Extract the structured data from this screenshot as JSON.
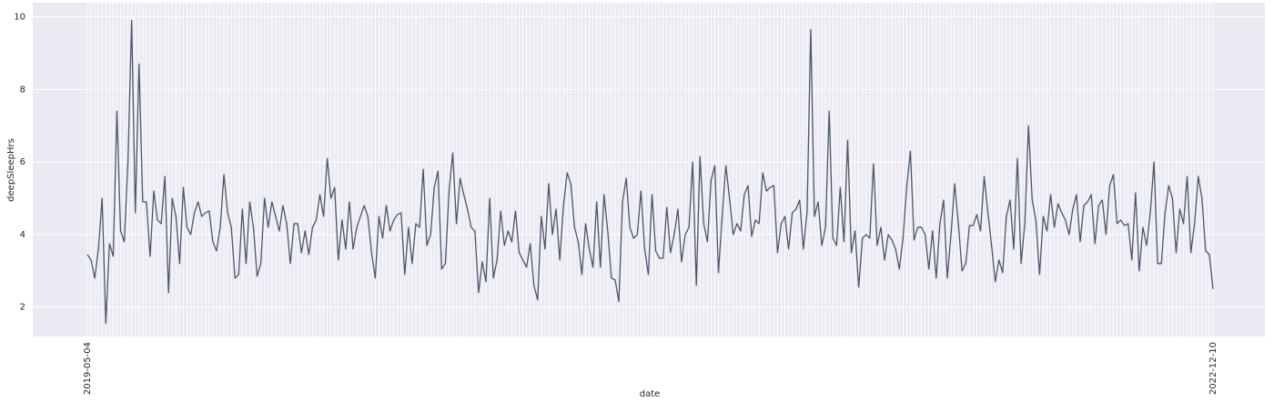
{
  "chart_data": {
    "type": "line",
    "xlabel": "date",
    "ylabel": "deepSleepHrs",
    "color": "#4c566a",
    "grid": true,
    "ylim": [
      1.19,
      10.39
    ],
    "yticks": [
      2,
      4,
      6,
      8,
      10
    ],
    "categories": [
      "2019-05-04",
      null,
      null,
      null,
      null,
      null,
      null,
      null,
      null,
      null,
      null,
      null,
      null,
      null,
      null,
      null,
      null,
      null,
      null,
      null,
      null,
      null,
      null,
      null,
      null,
      null,
      null,
      null,
      null,
      null,
      null,
      null,
      null,
      null,
      null,
      null,
      null,
      null,
      null,
      null,
      null,
      null,
      null,
      null,
      null,
      null,
      null,
      null,
      null,
      null,
      null,
      null,
      null,
      null,
      null,
      null,
      null,
      null,
      null,
      null,
      null,
      null,
      null,
      null,
      null,
      null,
      null,
      null,
      null,
      null,
      null,
      null,
      null,
      null,
      null,
      null,
      null,
      null,
      null,
      null,
      null,
      null,
      null,
      null,
      null,
      null,
      null,
      null,
      null,
      null,
      null,
      null,
      null,
      null,
      null,
      null,
      null,
      null,
      null,
      null,
      null,
      null,
      null,
      null,
      null,
      null,
      null,
      null,
      null,
      null,
      null,
      null,
      null,
      null,
      null,
      null,
      null,
      null,
      null,
      null,
      null,
      null,
      null,
      null,
      null,
      null,
      null,
      null,
      null,
      null,
      null,
      null,
      null,
      null,
      null,
      null,
      null,
      null,
      null,
      null,
      null,
      null,
      null,
      null,
      null,
      null,
      null,
      null,
      null,
      null,
      null,
      null,
      null,
      null,
      null,
      null,
      null,
      null,
      null,
      null,
      null,
      null,
      null,
      null,
      null,
      null,
      null,
      null,
      null,
      null,
      null,
      null,
      null,
      null,
      null,
      null,
      null,
      null,
      null,
      null,
      null,
      null,
      null,
      null,
      null,
      null,
      null,
      null,
      null,
      null,
      null,
      null,
      null,
      null,
      null,
      null,
      null,
      null,
      null,
      null,
      null,
      null,
      null,
      null,
      null,
      null,
      null,
      null,
      null,
      null,
      null,
      null,
      null,
      null,
      null,
      null,
      null,
      null,
      null,
      null,
      null,
      null,
      null,
      null,
      null,
      null,
      null,
      null,
      null,
      null,
      null,
      null,
      null,
      null,
      null,
      null,
      null,
      null,
      null,
      null,
      null,
      null,
      null,
      null,
      null,
      null,
      null,
      null,
      null,
      null,
      null,
      null,
      null,
      null,
      null,
      null,
      null,
      null,
      null,
      null,
      null,
      null,
      null,
      null,
      null,
      null,
      null,
      null,
      null,
      null,
      null,
      null,
      null,
      null,
      null,
      null,
      null,
      null,
      null,
      null,
      null,
      null,
      null,
      null,
      null,
      null,
      null,
      null,
      null,
      null,
      null,
      null,
      null,
      null,
      null,
      null,
      null,
      null,
      null,
      null,
      null,
      null,
      null,
      null,
      null,
      "2022-12-10"
    ],
    "values": [
      3.45,
      3.3,
      2.8,
      3.6,
      5.0,
      1.55,
      3.75,
      3.4,
      7.4,
      4.1,
      3.8,
      6.0,
      9.9,
      4.6,
      8.7,
      4.9,
      4.9,
      3.4,
      5.2,
      4.4,
      4.3,
      5.6,
      2.4,
      5.0,
      4.5,
      3.2,
      5.3,
      4.2,
      4.0,
      4.6,
      4.9,
      4.5,
      4.6,
      4.65,
      3.8,
      3.55,
      4.2,
      5.65,
      4.6,
      4.2,
      2.8,
      2.9,
      4.7,
      3.2,
      4.9,
      4.2,
      2.85,
      3.2,
      5.0,
      4.2,
      4.9,
      4.5,
      4.1,
      4.8,
      4.3,
      3.2,
      4.3,
      4.3,
      3.5,
      4.1,
      3.45,
      4.2,
      4.4,
      5.1,
      4.5,
      6.1,
      5.0,
      5.3,
      3.3,
      4.4,
      3.6,
      4.9,
      3.6,
      4.2,
      4.5,
      4.8,
      4.5,
      3.5,
      2.8,
      4.5,
      3.9,
      4.8,
      4.1,
      4.4,
      4.55,
      4.6,
      2.9,
      4.2,
      3.2,
      4.3,
      4.2,
      5.8,
      3.7,
      4.0,
      5.3,
      5.75,
      3.05,
      3.2,
      5.2,
      6.25,
      4.3,
      5.55,
      5.1,
      4.7,
      4.2,
      4.1,
      2.4,
      3.25,
      2.7,
      5.0,
      2.8,
      3.3,
      4.65,
      3.7,
      4.1,
      3.8,
      4.65,
      3.5,
      3.3,
      3.1,
      3.75,
      2.6,
      2.2,
      4.5,
      3.6,
      5.4,
      4.0,
      4.7,
      3.3,
      4.8,
      5.7,
      5.4,
      4.2,
      3.8,
      2.9,
      4.3,
      3.6,
      3.1,
      4.9,
      3.1,
      5.1,
      4.1,
      2.8,
      2.75,
      2.15,
      4.9,
      5.55,
      4.2,
      3.9,
      4.0,
      5.2,
      3.6,
      2.9,
      5.1,
      3.55,
      3.35,
      3.35,
      4.75,
      3.5,
      4.0,
      4.7,
      3.25,
      4.0,
      4.2,
      6.0,
      2.6,
      6.15,
      4.3,
      3.8,
      5.5,
      5.9,
      2.95,
      4.5,
      5.9,
      5.0,
      4.0,
      4.3,
      4.1,
      5.1,
      5.35,
      3.95,
      4.4,
      4.3,
      5.7,
      5.2,
      5.3,
      5.35,
      3.5,
      4.3,
      4.5,
      3.6,
      4.6,
      4.7,
      4.95,
      3.6,
      4.6,
      9.65,
      4.5,
      4.9,
      3.7,
      4.2,
      7.4,
      3.9,
      3.7,
      5.3,
      3.8,
      6.6,
      3.5,
      4.1,
      2.55,
      3.9,
      4.0,
      3.9,
      5.95,
      3.7,
      4.2,
      3.3,
      4.0,
      3.85,
      3.6,
      3.05,
      3.9,
      5.3,
      6.3,
      3.85,
      4.2,
      4.2,
      4.0,
      3.05,
      4.1,
      2.8,
      4.3,
      4.95,
      2.8,
      4.0,
      5.4,
      4.3,
      3.0,
      3.2,
      4.25,
      4.25,
      4.55,
      4.1,
      5.6,
      4.6,
      3.7,
      2.7,
      3.3,
      2.95,
      4.5,
      4.95,
      3.6,
      6.1,
      3.2,
      4.3,
      7.0,
      4.95,
      4.4,
      2.9,
      4.5,
      4.1,
      5.1,
      4.2,
      4.85,
      4.6,
      4.4,
      4.0,
      4.7,
      5.1,
      3.8,
      4.8,
      4.9,
      5.1,
      3.75,
      4.8,
      4.95,
      4.0,
      5.35,
      5.65,
      4.3,
      4.4,
      4.25,
      4.3,
      3.3,
      5.15,
      3.0,
      4.2,
      3.7,
      4.6,
      6.0,
      3.2,
      3.2,
      4.6,
      5.35,
      5.0,
      3.5,
      4.7,
      4.3,
      5.6,
      3.5,
      4.3,
      5.6,
      5.0,
      3.55,
      3.45,
      2.5
    ]
  }
}
